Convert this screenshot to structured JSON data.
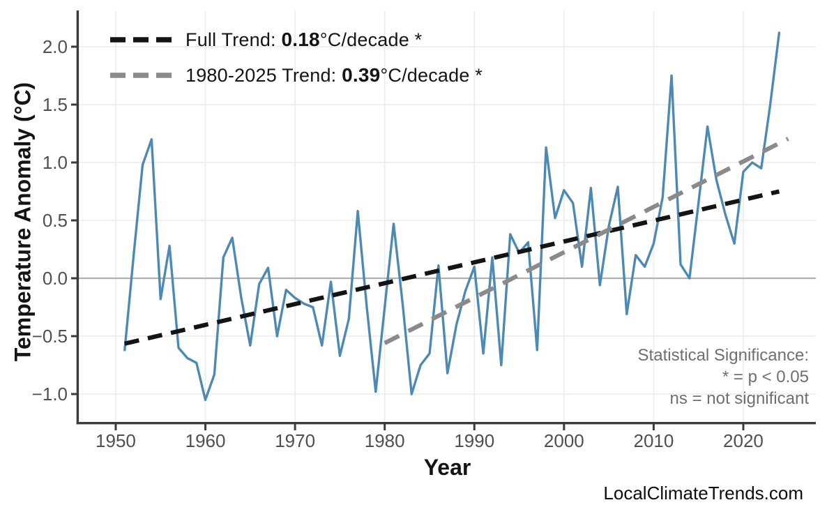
{
  "watermark": "LocalClimateTrends.com",
  "legend": {
    "full": {
      "prefix": "Full Trend: ",
      "value": "0.18",
      "suffix": "°C/decade *"
    },
    "recent": {
      "prefix": "1980-2025 Trend: ",
      "value": "0.39",
      "suffix": "°C/decade *"
    }
  },
  "annotation": {
    "line1": "Statistical Significance:",
    "line2": "* = p < 0.05",
    "line3": "ns = not significant"
  },
  "colors": {
    "data_line": "#4C89B3",
    "trend_full": "#141414",
    "trend_recent": "#8A8A8A",
    "zero_line": "#B0B0B0",
    "grid": "#EBEBEB",
    "spine": "#3B3B3B",
    "tick_label": "#4F4F4F",
    "axis_label": "#141414",
    "annotation": "#6F6F6F",
    "background": "#FFFFFF"
  },
  "chart_data": {
    "type": "line",
    "title": "",
    "xlabel": "Year",
    "ylabel": "Temperature Anomaly (°C)",
    "xlim": [
      1945.88,
      2028.09
    ],
    "ylim": [
      -1.241,
      2.313
    ],
    "grid": true,
    "legend_position": "upper left",
    "x_ticks": {
      "values": [
        1950,
        1960,
        1970,
        1980,
        1990,
        2000,
        2010,
        2020
      ],
      "labels": [
        "1950",
        "1960",
        "1970",
        "1980",
        "1990",
        "2000",
        "2010",
        "2020"
      ]
    },
    "y_ticks": {
      "values": [
        2.0,
        1.5,
        1.0,
        0.5,
        0.0,
        -0.5,
        -1.0
      ],
      "labels": [
        "2.0",
        "1.5",
        "1.0",
        "0.5",
        "0.0",
        "−0.5",
        "−1.0"
      ]
    },
    "series": [
      {
        "name": "annual-temperature-anomaly",
        "type": "line",
        "color_key": "data_line",
        "years": [
          1951,
          1952,
          1953,
          1954,
          1955,
          1956,
          1957,
          1958,
          1959,
          1960,
          1961,
          1962,
          1963,
          1964,
          1965,
          1966,
          1967,
          1968,
          1969,
          1970,
          1971,
          1972,
          1973,
          1974,
          1975,
          1976,
          1977,
          1978,
          1979,
          1980,
          1981,
          1982,
          1983,
          1984,
          1985,
          1986,
          1987,
          1988,
          1989,
          1990,
          1991,
          1992,
          1993,
          1994,
          1995,
          1996,
          1997,
          1998,
          1999,
          2000,
          2001,
          2002,
          2003,
          2004,
          2005,
          2006,
          2007,
          2008,
          2009,
          2010,
          2011,
          2012,
          2013,
          2014,
          2015,
          2016,
          2017,
          2018,
          2019,
          2020,
          2021,
          2022,
          2023,
          2024
        ],
        "values": [
          -0.62,
          0.2,
          0.98,
          1.2,
          -0.18,
          0.28,
          -0.6,
          -0.69,
          -0.73,
          -1.05,
          -0.83,
          0.18,
          0.35,
          -0.17,
          -0.58,
          -0.05,
          0.09,
          -0.5,
          -0.1,
          -0.17,
          -0.22,
          -0.25,
          -0.58,
          -0.03,
          -0.67,
          -0.35,
          0.58,
          -0.25,
          -0.98,
          -0.25,
          0.47,
          -0.22,
          -1.0,
          -0.75,
          -0.65,
          0.11,
          -0.82,
          -0.4,
          -0.11,
          0.1,
          -0.65,
          0.18,
          -0.75,
          0.38,
          0.22,
          0.31,
          -0.62,
          1.13,
          0.52,
          0.76,
          0.65,
          0.1,
          0.78,
          -0.06,
          0.45,
          0.79,
          -0.31,
          0.2,
          0.1,
          0.3,
          0.7,
          1.75,
          0.12,
          0.0,
          0.65,
          1.31,
          0.85,
          0.55,
          0.3,
          0.92,
          1.0,
          0.95,
          1.5,
          2.12
        ]
      },
      {
        "name": "full-trend",
        "type": "dashed_line",
        "color_key": "trend_full",
        "slope_c_per_decade": 0.18,
        "significant": true,
        "x": [
          1951,
          2024
        ],
        "y": [
          -0.565,
          0.75
        ],
        "dash": [
          21,
          13
        ]
      },
      {
        "name": "trend-1980-2025",
        "type": "dashed_line",
        "color_key": "trend_recent",
        "slope_c_per_decade": 0.39,
        "significant": true,
        "x": [
          1980,
          2025
        ],
        "y": [
          -0.56,
          1.205
        ],
        "dash": [
          23,
          15
        ]
      }
    ]
  }
}
